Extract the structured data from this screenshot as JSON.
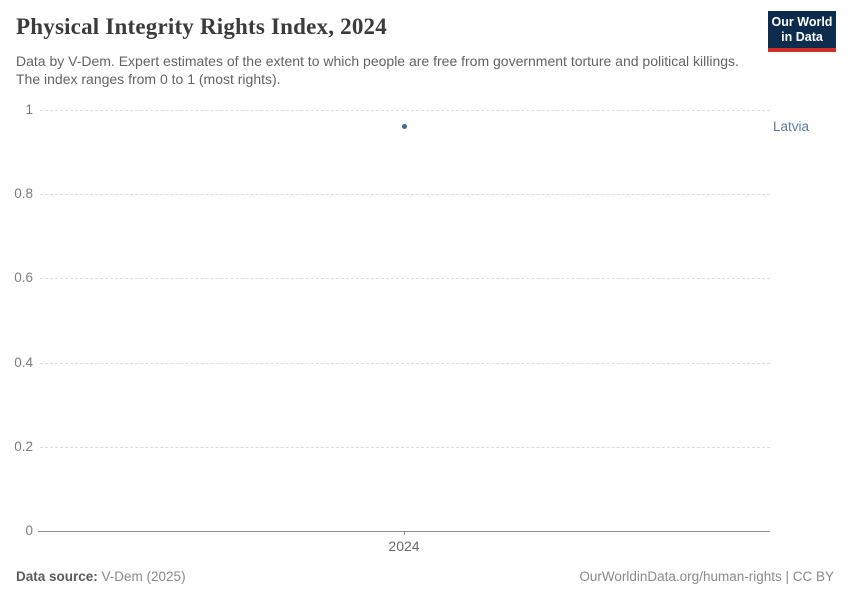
{
  "header": {
    "title": "Physical Integrity Rights Index, 2024",
    "subtitle": "Data by V-Dem. Expert estimates of the extent to which people are free from government torture and political killings. The index ranges from 0 to 1 (most rights).",
    "logo": {
      "line1": "Our World",
      "line2": "in Data"
    }
  },
  "chart_data": {
    "type": "scatter",
    "title": "Physical Integrity Rights Index, 2024",
    "x": [
      2024
    ],
    "series": [
      {
        "name": "Latvia",
        "points": [
          {
            "x": 2024,
            "y": 0.96
          }
        ]
      }
    ],
    "xlabel": "",
    "ylabel": "",
    "ylim": [
      0,
      1
    ],
    "yticks": [
      {
        "label": "0",
        "value": 0
      },
      {
        "label": "0.2",
        "value": 0.2
      },
      {
        "label": "0.4",
        "value": 0.4
      },
      {
        "label": "0.6",
        "value": 0.6
      },
      {
        "label": "0.8",
        "value": 0.8
      },
      {
        "label": "1",
        "value": 1
      }
    ],
    "xticks": [
      {
        "label": "2024",
        "value": 2024
      }
    ],
    "grid": "horizontal-dashed",
    "legend_position": "right-entity-label"
  },
  "footer": {
    "source_label": "Data source:",
    "source_value": " V-Dem (2025)",
    "attribution": "OurWorldinData.org/human-rights | CC BY"
  },
  "colors": {
    "accent_blue": "#3d6899",
    "entity_label": "#5b7ca8",
    "logo_bg": "#0d2c4d",
    "logo_bar": "#cf2e27",
    "gridline": "#dcdcdc",
    "axis": "#8f8f8f"
  }
}
